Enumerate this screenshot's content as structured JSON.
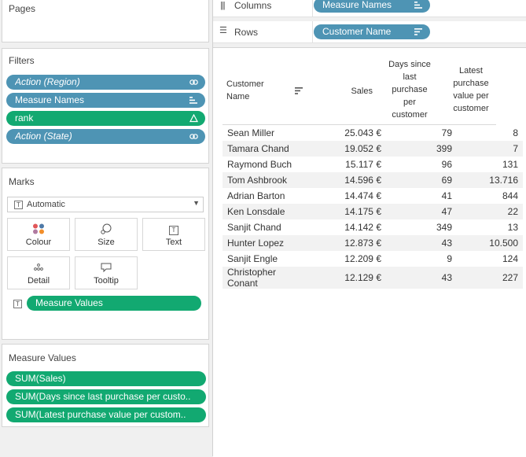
{
  "pages": {
    "title": "Pages"
  },
  "filters": {
    "title": "Filters",
    "items": [
      {
        "label": "Action (Region)",
        "color": "#4e94b4",
        "icon": "link-icon"
      },
      {
        "label": "Measure Names",
        "color": "#4e94b4",
        "icon": "sort-bars-icon"
      },
      {
        "label": "rank",
        "color": "#12a971",
        "icon": "delta-icon"
      },
      {
        "label": "Action (State)",
        "color": "#4e94b4",
        "icon": "link-icon"
      }
    ]
  },
  "marks": {
    "title": "Marks",
    "type_label": "Automatic",
    "buttons": [
      "Colour",
      "Size",
      "Text",
      "Detail",
      "Tooltip"
    ],
    "measure_pill": "Measure Values"
  },
  "measure_values": {
    "title": "Measure Values",
    "items": [
      "SUM(Sales)",
      "SUM(Days since last purchase per custo..",
      "SUM(Latest purchase value per custom.."
    ]
  },
  "shelves": {
    "columns_label": "Columns",
    "columns_pill": "Measure Names",
    "rows_label": "Rows",
    "rows_pill": "Customer Name"
  },
  "table": {
    "headers": {
      "name": [
        "Customer",
        "Name"
      ],
      "sales": [
        "Sales"
      ],
      "days": [
        "Days since",
        "last",
        "purchase",
        "per",
        "customer"
      ],
      "latest": [
        "Latest",
        "purchase",
        "value per",
        "customer"
      ]
    },
    "rows": [
      {
        "name": "Sean Miller",
        "sales": "25.043 €",
        "days": "79",
        "latest": "8"
      },
      {
        "name": "Tamara Chand",
        "sales": "19.052 €",
        "days": "399",
        "latest": "7"
      },
      {
        "name": "Raymond Buch",
        "sales": "15.117 €",
        "days": "96",
        "latest": "131"
      },
      {
        "name": "Tom Ashbrook",
        "sales": "14.596 €",
        "days": "69",
        "latest": "13.716"
      },
      {
        "name": "Adrian Barton",
        "sales": "14.474 €",
        "days": "41",
        "latest": "844"
      },
      {
        "name": "Ken Lonsdale",
        "sales": "14.175 €",
        "days": "47",
        "latest": "22"
      },
      {
        "name": "Sanjit Chand",
        "sales": "14.142 €",
        "days": "349",
        "latest": "13"
      },
      {
        "name": "Hunter Lopez",
        "sales": "12.873 €",
        "days": "43",
        "latest": "10.500"
      },
      {
        "name": "Sanjit Engle",
        "sales": "12.209 €",
        "days": "9",
        "latest": "124"
      },
      {
        "name": "Christopher Conant",
        "sales": "12.129 €",
        "days": "43",
        "latest": "227"
      }
    ]
  },
  "colors": {
    "dimension_pill": "#4e94b4",
    "measure_pill": "#12a971"
  }
}
